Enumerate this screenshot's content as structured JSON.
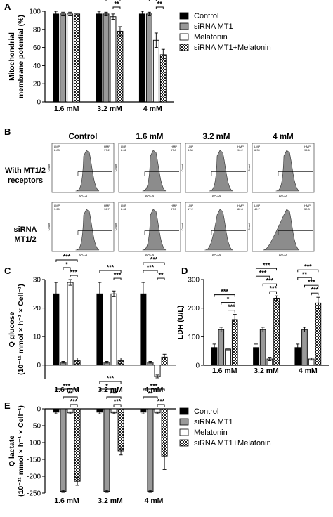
{
  "panels": {
    "A": "A",
    "B": "B",
    "C": "C",
    "D": "D",
    "E": "E"
  },
  "legend": {
    "items": [
      {
        "label": "Control",
        "pattern": "solid-black"
      },
      {
        "label": "siRNA MT1",
        "pattern": "solid-gray"
      },
      {
        "label": "Melatonin",
        "pattern": "white"
      },
      {
        "label": "siRNA MT1+Melatonin",
        "pattern": "checker"
      }
    ]
  },
  "flow": {
    "columns": [
      "Control",
      "1.6 mM",
      "3.2 mM",
      "4 mM"
    ],
    "rows": [
      {
        "label_lines": [
          "With MT1/2",
          "receptors"
        ]
      },
      {
        "label_lines": [
          "siRNA",
          "MT1/2"
        ]
      }
    ],
    "y_axis_label": "Count",
    "x_axis_label": "APC-A",
    "gate_low": "LMP",
    "gate_high": "HMP",
    "values": [
      [
        [
          "2.83",
          "97.2"
        ],
        [
          "2.62",
          "97.8"
        ],
        [
          "3.84",
          "96.2"
        ],
        [
          "6.39",
          "96.6"
        ]
      ],
      [
        [
          "3.25",
          "96.7"
        ],
        [
          "2.62",
          "97.5"
        ],
        [
          "17.2",
          "82.8"
        ],
        [
          "49.7",
          "50.3"
        ]
      ]
    ]
  },
  "chart_data": [
    {
      "panel": "A",
      "type": "bar",
      "ylabel_lines": [
        "Mitochondrial",
        "membrane potential (%)"
      ],
      "ylim": [
        0,
        100
      ],
      "yticks": [
        "0",
        "20",
        "40",
        "60",
        "80",
        "100"
      ],
      "categories": [
        "1.6 mM",
        "3.2 mM",
        "4 mM"
      ],
      "series": [
        {
          "name": "Control",
          "values": [
            97,
            97,
            97
          ],
          "errors": [
            3,
            3,
            3
          ]
        },
        {
          "name": "siRNA MT1",
          "values": [
            97,
            97,
            97
          ],
          "errors": [
            2,
            2,
            2
          ]
        },
        {
          "name": "Melatonin",
          "values": [
            97,
            94,
            68
          ],
          "errors": [
            2,
            3,
            8
          ]
        },
        {
          "name": "siRNA MT1+Melatonin",
          "values": [
            97,
            78,
            52
          ],
          "errors": [
            1,
            5,
            6
          ]
        }
      ],
      "significance": [
        {
          "group": 1,
          "from": 0,
          "to": 3,
          "label": "***"
        },
        {
          "group": 1,
          "from": 1,
          "to": 3,
          "label": "***"
        },
        {
          "group": 1,
          "from": 2,
          "to": 3,
          "label": "**"
        },
        {
          "group": 2,
          "from": 0,
          "to": 3,
          "label": "***"
        },
        {
          "group": 2,
          "from": 0,
          "to": 2,
          "label": "***"
        },
        {
          "group": 2,
          "from": 1,
          "to": 3,
          "label": "***"
        },
        {
          "group": 2,
          "from": 1,
          "to": 2,
          "label": "***"
        },
        {
          "group": 2,
          "from": 2,
          "to": 3,
          "label": "**"
        }
      ]
    },
    {
      "panel": "C",
      "type": "bar",
      "ylabel_lines": [
        "Q glucose",
        "(10⁻¹¹ mmol × h⁻¹ × Cell⁻¹)"
      ],
      "ylim": [
        -5,
        30
      ],
      "yticks": [
        "0",
        "10",
        "20",
        "30"
      ],
      "categories": [
        "1.6 mM",
        "3.2 mM",
        "4 mM"
      ],
      "series": [
        {
          "name": "Control",
          "values": [
            25,
            25,
            25
          ],
          "errors": [
            4,
            4,
            4
          ]
        },
        {
          "name": "siRNA MT1",
          "values": [
            1,
            1,
            1
          ],
          "errors": [
            0.3,
            0.3,
            0.3
          ]
        },
        {
          "name": "Melatonin",
          "values": [
            29,
            25,
            -4
          ],
          "errors": [
            1,
            1,
            0.5
          ]
        },
        {
          "name": "siRNA MT1+Melatonin",
          "values": [
            1.5,
            1.5,
            2.8
          ],
          "errors": [
            1,
            1,
            1
          ]
        }
      ],
      "significance": [
        {
          "group": 0,
          "from": 0,
          "to": 3,
          "label": "***"
        },
        {
          "group": 0,
          "from": 1,
          "to": 2,
          "label": "*"
        },
        {
          "group": 0,
          "from": 2,
          "to": 3,
          "label": "***"
        },
        {
          "group": 1,
          "from": 0,
          "to": 3,
          "label": "***"
        },
        {
          "group": 1,
          "from": 2,
          "to": 3,
          "label": "***"
        },
        {
          "group": 2,
          "from": 0,
          "to": 3,
          "label": "***"
        },
        {
          "group": 2,
          "from": 0,
          "to": 2,
          "label": "***"
        },
        {
          "group": 2,
          "from": 2,
          "to": 3,
          "label": "**"
        }
      ]
    },
    {
      "panel": "D",
      "type": "bar",
      "ylabel_lines": [
        "LDH (U/L)"
      ],
      "ylim": [
        0,
        300
      ],
      "yticks": [
        "0",
        "100",
        "200",
        "300"
      ],
      "categories": [
        "1.6 mM",
        "3.2 mM",
        "4 mM"
      ],
      "series": [
        {
          "name": "Control",
          "values": [
            62,
            62,
            62
          ],
          "errors": [
            12,
            12,
            12
          ]
        },
        {
          "name": "siRNA MT1",
          "values": [
            125,
            125,
            125
          ],
          "errors": [
            8,
            8,
            8
          ]
        },
        {
          "name": "Melatonin",
          "values": [
            57,
            22,
            22
          ],
          "errors": [
            3,
            6,
            4
          ]
        },
        {
          "name": "siRNA MT1+Melatonin",
          "values": [
            160,
            235,
            218
          ],
          "errors": [
            18,
            8,
            20
          ]
        }
      ],
      "significance": [
        {
          "group": 0,
          "from": 0,
          "to": 3,
          "label": "***"
        },
        {
          "group": 0,
          "from": 1,
          "to": 3,
          "label": "*"
        },
        {
          "group": 0,
          "from": 2,
          "to": 3,
          "label": "***"
        },
        {
          "group": 1,
          "from": 0,
          "to": 3,
          "label": "***"
        },
        {
          "group": 1,
          "from": 0,
          "to": 2,
          "label": "***"
        },
        {
          "group": 1,
          "from": 1,
          "to": 3,
          "label": "***"
        },
        {
          "group": 1,
          "from": 2,
          "to": 3,
          "label": "***"
        },
        {
          "group": 2,
          "from": 0,
          "to": 3,
          "label": "***"
        },
        {
          "group": 2,
          "from": 0,
          "to": 2,
          "label": "**"
        },
        {
          "group": 2,
          "from": 1,
          "to": 3,
          "label": "***"
        },
        {
          "group": 2,
          "from": 2,
          "to": 3,
          "label": "***"
        }
      ]
    },
    {
      "panel": "E",
      "type": "bar",
      "ylabel_lines": [
        "Q lactate",
        "(10⁻¹¹ mmol × h⁻¹ × Cell⁻¹)"
      ],
      "ylim": [
        -250,
        0
      ],
      "yticks": [
        "-250",
        "-200",
        "-150",
        "-100",
        "-50",
        "0"
      ],
      "categories": [
        "1.6 mM",
        "3.2 mM",
        "4 mM"
      ],
      "series": [
        {
          "name": "Control",
          "values": [
            -10,
            -10,
            -10
          ],
          "errors": [
            5,
            5,
            5
          ]
        },
        {
          "name": "siRNA MT1",
          "values": [
            -245,
            -245,
            -245
          ],
          "errors": [
            3,
            3,
            3
          ]
        },
        {
          "name": "Melatonin",
          "values": [
            -12,
            -12,
            -12
          ],
          "errors": [
            3,
            3,
            3
          ]
        },
        {
          "name": "siRNA MT1+Melatonin",
          "values": [
            -215,
            -125,
            -140
          ],
          "errors": [
            12,
            12,
            40
          ]
        }
      ],
      "significance": [
        {
          "group": 0,
          "from": 0,
          "to": 3,
          "label": "***"
        },
        {
          "group": 0,
          "from": 1,
          "to": 3,
          "label": "**"
        },
        {
          "group": 0,
          "from": 2,
          "to": 3,
          "label": "***"
        },
        {
          "group": 1,
          "from": 0,
          "to": 3,
          "label": "***"
        },
        {
          "group": 1,
          "from": 0,
          "to": 2,
          "label": "*"
        },
        {
          "group": 1,
          "from": 1,
          "to": 3,
          "label": "***"
        },
        {
          "group": 1,
          "from": 2,
          "to": 3,
          "label": "***"
        },
        {
          "group": 2,
          "from": 0,
          "to": 3,
          "label": "***"
        },
        {
          "group": 2,
          "from": 0,
          "to": 2,
          "label": "**"
        },
        {
          "group": 2,
          "from": 2,
          "to": 3,
          "label": "***"
        }
      ]
    }
  ]
}
